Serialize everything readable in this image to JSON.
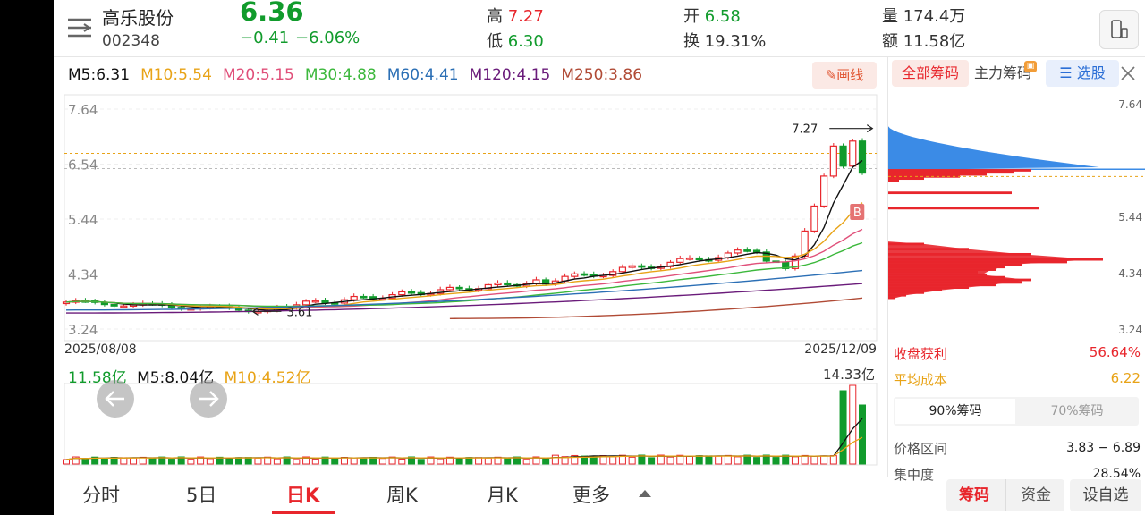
{
  "header": {
    "stock_name": "高乐股份",
    "stock_code": "002348",
    "price": "6.36",
    "change": "−0.41",
    "change_pct": "−6.06%",
    "high_label": "高",
    "high": "7.27",
    "low_label": "低",
    "low": "6.30",
    "open_label": "开",
    "open": "6.58",
    "turnover_label": "换",
    "turnover": "19.31%",
    "volume_label": "量",
    "volume": "174.4万",
    "amount_label": "额",
    "amount": "11.58亿"
  },
  "ma_legend": [
    {
      "label": "M5:6.31",
      "color": "#111111"
    },
    {
      "label": "M10:5.54",
      "color": "#e8a317"
    },
    {
      "label": "M20:5.15",
      "color": "#e0507a"
    },
    {
      "label": "M30:4.88",
      "color": "#3cb83c"
    },
    {
      "label": "M60:4.41",
      "color": "#2b6fb5"
    },
    {
      "label": "M120:4.15",
      "color": "#6a1b7a"
    },
    {
      "label": "M250:3.86",
      "color": "#b04a35"
    }
  ],
  "draw_button": "画线",
  "price_axis": [
    "7.64",
    "6.54",
    "5.44",
    "4.34",
    "3.24"
  ],
  "dates": {
    "start": "2025/08/08",
    "end": "2025/12/09"
  },
  "annotations": {
    "high_mark": "7.27",
    "low_mark": "3.61",
    "buy_badge": "B"
  },
  "volume_legend": {
    "amount": "11.58亿",
    "m5": "M5:8.04亿",
    "m10": "M10:4.52亿",
    "max": "14.33亿"
  },
  "bottom_tabs": [
    "分时",
    "5日",
    "日K",
    "周K",
    "月K",
    "更多"
  ],
  "active_tab": "日K",
  "chip_panel": {
    "tabs": [
      "全部筹码",
      "主力筹码",
      "选股"
    ],
    "axis": [
      "7.64",
      "5.44",
      "4.34",
      "3.24"
    ],
    "profit_label": "收盘获利",
    "profit_value": "56.64%",
    "avg_cost_label": "平均成本",
    "avg_cost_value": "6.22",
    "ratio_tabs": [
      "90%筹码",
      "70%筹码"
    ],
    "range_label": "价格区间",
    "range_value": "3.83 − 6.89",
    "concentration_label": "集中度",
    "concentration_value": "28.54%"
  },
  "bottom_buttons": [
    "筹码",
    "资金",
    "设自选"
  ],
  "colors": {
    "up": "#e8262c",
    "down": "#119b2c",
    "chip_blue": "#3b8be6",
    "chip_red": "#e8262c"
  }
}
